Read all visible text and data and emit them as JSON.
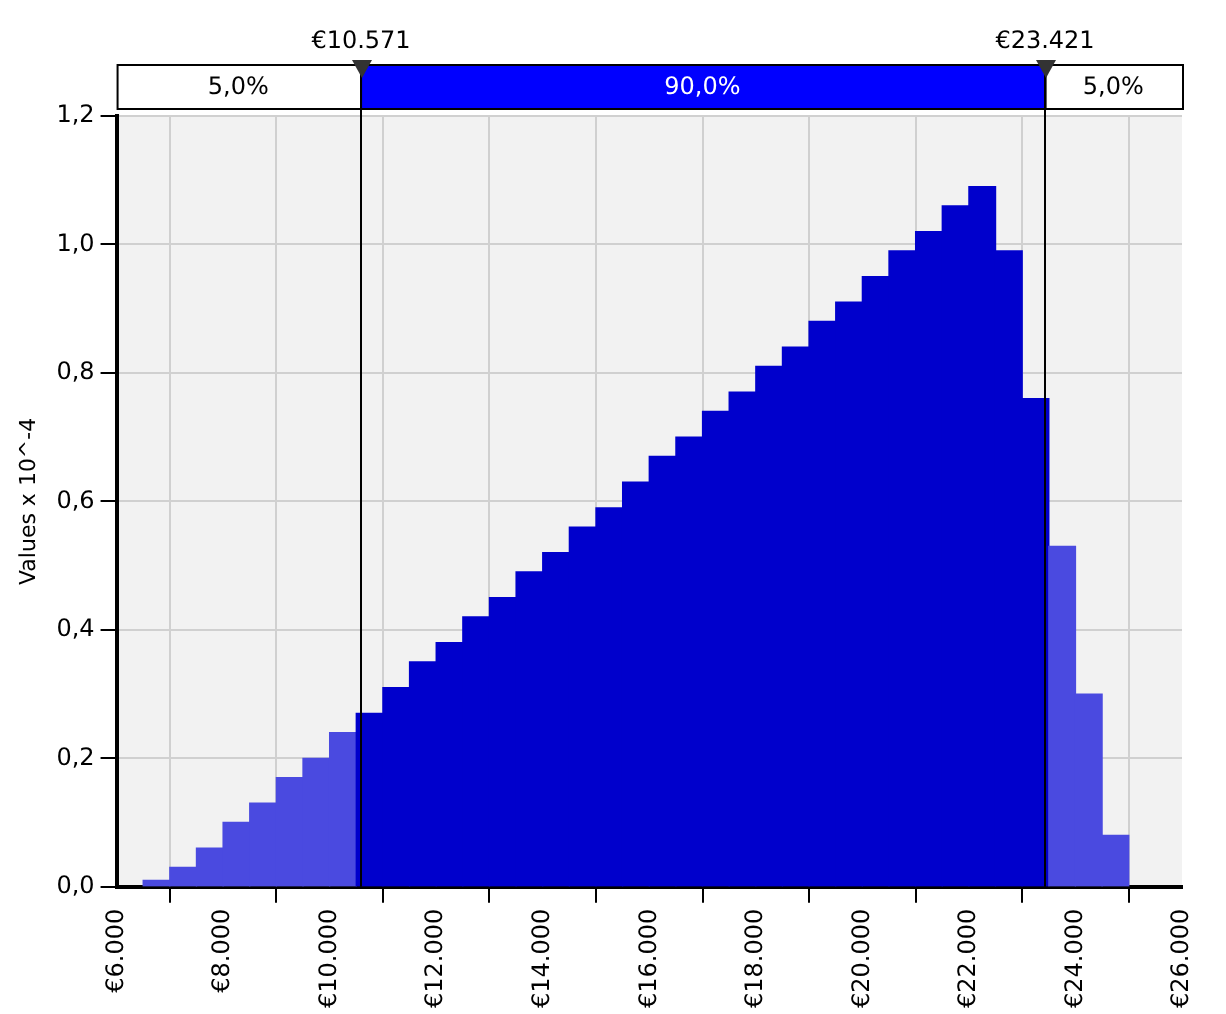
{
  "chart_data": {
    "type": "histogram",
    "ylabel": "Values x 10^-4",
    "bins": [
      6500,
      7000,
      7500,
      8000,
      8500,
      9000,
      9500,
      10000,
      10500,
      11000,
      11500,
      12000,
      12500,
      13000,
      13500,
      14000,
      14500,
      15000,
      15500,
      16000,
      16500,
      17000,
      17500,
      18000,
      18500,
      19000,
      19500,
      20000,
      20500,
      21000,
      21500,
      22000,
      22500,
      23000,
      23500,
      24000,
      24500,
      25000
    ],
    "values": [
      0.01,
      0.03,
      0.06,
      0.1,
      0.13,
      0.17,
      0.2,
      0.24,
      0.27,
      0.31,
      0.35,
      0.38,
      0.42,
      0.45,
      0.49,
      0.52,
      0.56,
      0.59,
      0.63,
      0.67,
      0.7,
      0.74,
      0.77,
      0.81,
      0.84,
      0.88,
      0.91,
      0.95,
      0.99,
      1.02,
      1.06,
      1.09,
      0.99,
      0.76,
      0.53,
      0.3,
      0.08
    ],
    "colors": [
      "#4a4ae0",
      "#4a4ae0",
      "#4a4ae0",
      "#4a4ae0",
      "#4a4ae0",
      "#4a4ae0",
      "#4a4ae0",
      "#4a4ae0",
      "#0000cc",
      "#0000cc",
      "#0000cc",
      "#0000cc",
      "#0000cc",
      "#0000cc",
      "#0000cc",
      "#0000cc",
      "#0000cc",
      "#0000cc",
      "#0000cc",
      "#0000cc",
      "#0000cc",
      "#0000cc",
      "#0000cc",
      "#0000cc",
      "#0000cc",
      "#0000cc",
      "#0000cc",
      "#0000cc",
      "#0000cc",
      "#0000cc",
      "#0000cc",
      "#0000cc",
      "#0000cc",
      "#0000cc",
      "#4a4ae0",
      "#4a4ae0",
      "#4a4ae0"
    ],
    "xlim": [
      6000,
      26000
    ],
    "xticks": [
      {
        "value": 6000,
        "label": "€6.000"
      },
      {
        "value": 8000,
        "label": "€8.000"
      },
      {
        "value": 10000,
        "label": "€10.000"
      },
      {
        "value": 12000,
        "label": "€12.000"
      },
      {
        "value": 14000,
        "label": "€14.000"
      },
      {
        "value": 16000,
        "label": "€16.000"
      },
      {
        "value": 18000,
        "label": "€18.000"
      },
      {
        "value": 20000,
        "label": "€20.000"
      },
      {
        "value": 22000,
        "label": "€22.000"
      },
      {
        "value": 24000,
        "label": "€24.000"
      },
      {
        "value": 26000,
        "label": "€26.000"
      }
    ],
    "ylim": [
      0,
      1.2
    ],
    "yticks": [
      {
        "value": 0,
        "label": "0,0"
      },
      {
        "value": 0.2,
        "label": "0,2"
      },
      {
        "value": 0.4,
        "label": "0,4"
      },
      {
        "value": 0.6,
        "label": "0,6"
      },
      {
        "value": 0.8,
        "label": "0,8"
      },
      {
        "value": 1.0,
        "label": "1,0"
      },
      {
        "value": 1.2,
        "label": "1,2"
      }
    ],
    "grid": true,
    "ref_lines": [
      {
        "axis": "x",
        "value": 10571,
        "label": "€10.571",
        "color": "#000000"
      },
      {
        "axis": "x",
        "value": 23421,
        "label": "€23.421",
        "color": "#000000"
      }
    ],
    "annotations": [
      "5,0%",
      "90,0%",
      "5,0%"
    ]
  }
}
